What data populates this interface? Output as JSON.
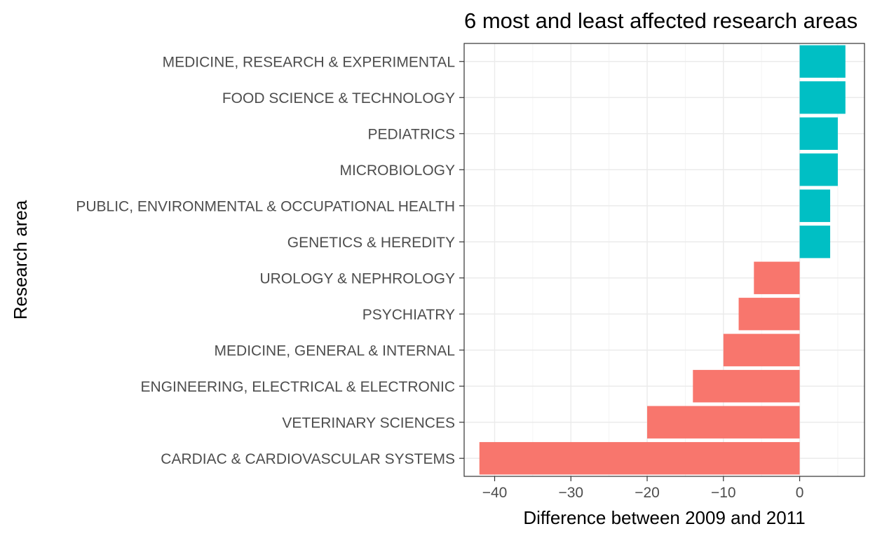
{
  "chart_data": {
    "type": "bar",
    "orientation": "horizontal",
    "title": "6 most and least affected research areas",
    "xlabel": "Difference between 2009 and 2011",
    "ylabel": "Research area",
    "categories": [
      "MEDICINE, RESEARCH & EXPERIMENTAL",
      "FOOD SCIENCE & TECHNOLOGY",
      "PEDIATRICS",
      "MICROBIOLOGY",
      "PUBLIC, ENVIRONMENTAL & OCCUPATIONAL HEALTH",
      "GENETICS & HEREDITY",
      "UROLOGY & NEPHROLOGY",
      "PSYCHIATRY",
      "MEDICINE, GENERAL & INTERNAL",
      "ENGINEERING, ELECTRICAL & ELECTRONIC",
      "VETERINARY SCIENCES",
      "CARDIAC & CARDIOVASCULAR SYSTEMS"
    ],
    "values": [
      6,
      6,
      5,
      5,
      4,
      4,
      -6,
      -8,
      -10,
      -14,
      -20,
      -42
    ],
    "xlim": [
      -44,
      8.5
    ],
    "xticks": [
      -40,
      -30,
      -20,
      -10,
      0
    ],
    "grid": true,
    "legend": "none",
    "colors": {
      "positive": "#00BFC4",
      "negative": "#F8766D"
    }
  }
}
